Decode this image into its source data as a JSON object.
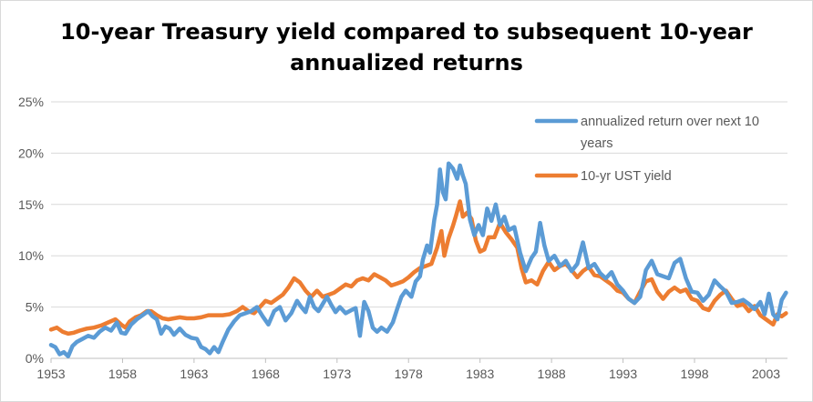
{
  "chart_data": {
    "type": "line",
    "title_lines": [
      "10-year Treasury yield compared to subsequent 10-year",
      "annualized returns"
    ],
    "xlabel": "",
    "ylabel": "",
    "xlim": [
      1953,
      2004.5
    ],
    "ylim": [
      0,
      25
    ],
    "x_ticks": [
      1953,
      1958,
      1963,
      1968,
      1973,
      1978,
      1983,
      1988,
      1993,
      1998,
      2003
    ],
    "y_ticks": [
      {
        "value": 0,
        "label": "0%"
      },
      {
        "value": 5,
        "label": "5%"
      },
      {
        "value": 10,
        "label": "10%"
      },
      {
        "value": 15,
        "label": "15%"
      },
      {
        "value": 20,
        "label": "20%"
      },
      {
        "value": 25,
        "label": "25%"
      }
    ],
    "grid": true,
    "legend_position": "top-right",
    "series": [
      {
        "name": "annualized return over next 10 years",
        "legend_lines": [
          "annualized return over next 10",
          "years"
        ],
        "color": "#5b9bd5",
        "points": [
          [
            1953.0,
            1.3
          ],
          [
            1953.3,
            1.1
          ],
          [
            1953.6,
            0.4
          ],
          [
            1953.9,
            0.6
          ],
          [
            1954.2,
            0.2
          ],
          [
            1954.5,
            1.2
          ],
          [
            1954.8,
            1.6
          ],
          [
            1955.2,
            1.9
          ],
          [
            1955.6,
            2.2
          ],
          [
            1956.0,
            2.0
          ],
          [
            1956.4,
            2.6
          ],
          [
            1956.8,
            3.0
          ],
          [
            1957.2,
            2.7
          ],
          [
            1957.6,
            3.5
          ],
          [
            1957.9,
            2.5
          ],
          [
            1958.2,
            2.4
          ],
          [
            1958.6,
            3.3
          ],
          [
            1959.0,
            3.8
          ],
          [
            1959.4,
            4.2
          ],
          [
            1959.8,
            4.6
          ],
          [
            1960.1,
            4.1
          ],
          [
            1960.4,
            3.8
          ],
          [
            1960.7,
            2.4
          ],
          [
            1961.0,
            3.1
          ],
          [
            1961.3,
            2.9
          ],
          [
            1961.6,
            2.3
          ],
          [
            1962.0,
            2.9
          ],
          [
            1962.4,
            2.3
          ],
          [
            1962.8,
            2.0
          ],
          [
            1963.2,
            1.9
          ],
          [
            1963.5,
            1.1
          ],
          [
            1963.8,
            0.9
          ],
          [
            1964.1,
            0.5
          ],
          [
            1964.4,
            1.1
          ],
          [
            1964.7,
            0.6
          ],
          [
            1965.0,
            1.6
          ],
          [
            1965.4,
            2.8
          ],
          [
            1965.8,
            3.6
          ],
          [
            1966.2,
            4.2
          ],
          [
            1966.6,
            4.4
          ],
          [
            1967.0,
            4.6
          ],
          [
            1967.4,
            5.0
          ],
          [
            1967.8,
            4.1
          ],
          [
            1968.2,
            3.3
          ],
          [
            1968.6,
            4.6
          ],
          [
            1969.0,
            5.0
          ],
          [
            1969.4,
            3.7
          ],
          [
            1969.8,
            4.4
          ],
          [
            1970.2,
            5.6
          ],
          [
            1970.5,
            5.0
          ],
          [
            1970.8,
            4.5
          ],
          [
            1971.1,
            6.0
          ],
          [
            1971.4,
            5.0
          ],
          [
            1971.7,
            4.6
          ],
          [
            1972.0,
            5.3
          ],
          [
            1972.3,
            6.0
          ],
          [
            1972.6,
            5.2
          ],
          [
            1972.9,
            4.5
          ],
          [
            1973.2,
            5.0
          ],
          [
            1973.6,
            4.4
          ],
          [
            1974.0,
            4.7
          ],
          [
            1974.3,
            4.9
          ],
          [
            1974.6,
            2.2
          ],
          [
            1974.9,
            5.5
          ],
          [
            1975.2,
            4.6
          ],
          [
            1975.5,
            3.0
          ],
          [
            1975.8,
            2.6
          ],
          [
            1976.1,
            3.0
          ],
          [
            1976.5,
            2.6
          ],
          [
            1976.9,
            3.5
          ],
          [
            1977.2,
            4.8
          ],
          [
            1977.5,
            6.0
          ],
          [
            1977.8,
            6.6
          ],
          [
            1978.2,
            6.0
          ],
          [
            1978.5,
            7.5
          ],
          [
            1978.8,
            8.0
          ],
          [
            1979.0,
            9.6
          ],
          [
            1979.3,
            11.0
          ],
          [
            1979.5,
            10.3
          ],
          [
            1979.8,
            13.5
          ],
          [
            1980.0,
            15.0
          ],
          [
            1980.2,
            18.4
          ],
          [
            1980.4,
            16.2
          ],
          [
            1980.6,
            15.5
          ],
          [
            1980.8,
            19.0
          ],
          [
            1981.1,
            18.5
          ],
          [
            1981.4,
            17.5
          ],
          [
            1981.6,
            18.8
          ],
          [
            1981.8,
            17.8
          ],
          [
            1982.0,
            17.0
          ],
          [
            1982.3,
            13.5
          ],
          [
            1982.6,
            12.0
          ],
          [
            1982.9,
            13.0
          ],
          [
            1983.2,
            12.0
          ],
          [
            1983.5,
            14.6
          ],
          [
            1983.8,
            13.4
          ],
          [
            1984.1,
            15.0
          ],
          [
            1984.4,
            13.0
          ],
          [
            1984.7,
            13.8
          ],
          [
            1985.0,
            12.5
          ],
          [
            1985.4,
            12.8
          ],
          [
            1985.8,
            10.3
          ],
          [
            1986.2,
            8.5
          ],
          [
            1986.6,
            9.8
          ],
          [
            1986.9,
            10.4
          ],
          [
            1987.2,
            13.2
          ],
          [
            1987.5,
            11.0
          ],
          [
            1987.8,
            9.5
          ],
          [
            1988.2,
            10.0
          ],
          [
            1988.6,
            9.0
          ],
          [
            1989.0,
            9.5
          ],
          [
            1989.4,
            8.5
          ],
          [
            1989.8,
            9.2
          ],
          [
            1990.2,
            11.3
          ],
          [
            1990.6,
            8.8
          ],
          [
            1991.0,
            9.2
          ],
          [
            1991.4,
            8.3
          ],
          [
            1991.8,
            7.8
          ],
          [
            1992.2,
            8.4
          ],
          [
            1992.6,
            7.2
          ],
          [
            1993.0,
            6.6
          ],
          [
            1993.4,
            5.8
          ],
          [
            1993.8,
            5.4
          ],
          [
            1994.2,
            6.0
          ],
          [
            1994.6,
            8.6
          ],
          [
            1995.0,
            9.5
          ],
          [
            1995.4,
            8.2
          ],
          [
            1995.8,
            8.0
          ],
          [
            1996.2,
            7.8
          ],
          [
            1996.6,
            9.3
          ],
          [
            1997.0,
            9.7
          ],
          [
            1997.4,
            7.8
          ],
          [
            1997.8,
            6.5
          ],
          [
            1998.2,
            6.4
          ],
          [
            1998.6,
            5.6
          ],
          [
            1999.0,
            6.2
          ],
          [
            1999.4,
            7.6
          ],
          [
            1999.8,
            7.0
          ],
          [
            2000.2,
            6.5
          ],
          [
            2000.6,
            5.4
          ],
          [
            2001.0,
            5.5
          ],
          [
            2001.4,
            5.7
          ],
          [
            2001.8,
            5.3
          ],
          [
            2002.2,
            4.8
          ],
          [
            2002.6,
            5.5
          ],
          [
            2002.9,
            4.3
          ],
          [
            2003.2,
            6.3
          ],
          [
            2003.5,
            4.3
          ],
          [
            2003.8,
            3.8
          ],
          [
            2004.1,
            5.7
          ],
          [
            2004.4,
            6.4
          ]
        ]
      },
      {
        "name": "10-yr UST yield",
        "legend_lines": [
          "10-yr UST yield"
        ],
        "color": "#ed7d31",
        "points": [
          [
            1953.0,
            2.8
          ],
          [
            1953.4,
            3.0
          ],
          [
            1953.8,
            2.6
          ],
          [
            1954.2,
            2.4
          ],
          [
            1954.6,
            2.5
          ],
          [
            1955.0,
            2.7
          ],
          [
            1955.5,
            2.9
          ],
          [
            1956.0,
            3.0
          ],
          [
            1956.5,
            3.2
          ],
          [
            1957.0,
            3.5
          ],
          [
            1957.5,
            3.8
          ],
          [
            1957.9,
            3.3
          ],
          [
            1958.2,
            3.0
          ],
          [
            1958.5,
            3.6
          ],
          [
            1958.9,
            4.0
          ],
          [
            1959.3,
            4.2
          ],
          [
            1959.7,
            4.6
          ],
          [
            1960.0,
            4.6
          ],
          [
            1960.4,
            4.2
          ],
          [
            1960.8,
            3.9
          ],
          [
            1961.2,
            3.8
          ],
          [
            1961.6,
            3.9
          ],
          [
            1962.0,
            4.0
          ],
          [
            1962.5,
            3.9
          ],
          [
            1963.0,
            3.9
          ],
          [
            1963.5,
            4.0
          ],
          [
            1964.0,
            4.2
          ],
          [
            1964.5,
            4.2
          ],
          [
            1965.0,
            4.2
          ],
          [
            1965.5,
            4.3
          ],
          [
            1966.0,
            4.6
          ],
          [
            1966.4,
            5.0
          ],
          [
            1966.8,
            4.6
          ],
          [
            1967.2,
            4.4
          ],
          [
            1967.6,
            5.0
          ],
          [
            1968.0,
            5.6
          ],
          [
            1968.4,
            5.4
          ],
          [
            1968.8,
            5.8
          ],
          [
            1969.2,
            6.2
          ],
          [
            1969.6,
            6.9
          ],
          [
            1970.0,
            7.8
          ],
          [
            1970.4,
            7.4
          ],
          [
            1970.8,
            6.6
          ],
          [
            1971.2,
            6.0
          ],
          [
            1971.6,
            6.6
          ],
          [
            1972.0,
            6.0
          ],
          [
            1972.4,
            6.2
          ],
          [
            1972.8,
            6.4
          ],
          [
            1973.2,
            6.8
          ],
          [
            1973.6,
            7.2
          ],
          [
            1974.0,
            7.0
          ],
          [
            1974.4,
            7.6
          ],
          [
            1974.8,
            7.8
          ],
          [
            1975.2,
            7.6
          ],
          [
            1975.6,
            8.2
          ],
          [
            1976.0,
            7.9
          ],
          [
            1976.4,
            7.6
          ],
          [
            1976.8,
            7.1
          ],
          [
            1977.2,
            7.3
          ],
          [
            1977.6,
            7.5
          ],
          [
            1978.0,
            7.9
          ],
          [
            1978.4,
            8.4
          ],
          [
            1978.8,
            8.8
          ],
          [
            1979.2,
            9.0
          ],
          [
            1979.6,
            9.2
          ],
          [
            1980.0,
            10.8
          ],
          [
            1980.3,
            12.4
          ],
          [
            1980.5,
            10.0
          ],
          [
            1980.8,
            11.7
          ],
          [
            1981.1,
            12.9
          ],
          [
            1981.3,
            13.8
          ],
          [
            1981.6,
            15.3
          ],
          [
            1981.8,
            13.8
          ],
          [
            1982.1,
            14.2
          ],
          [
            1982.4,
            13.6
          ],
          [
            1982.7,
            11.5
          ],
          [
            1983.0,
            10.4
          ],
          [
            1983.3,
            10.6
          ],
          [
            1983.6,
            11.8
          ],
          [
            1984.0,
            11.8
          ],
          [
            1984.4,
            13.2
          ],
          [
            1984.8,
            12.3
          ],
          [
            1985.2,
            11.6
          ],
          [
            1985.6,
            10.8
          ],
          [
            1985.9,
            8.8
          ],
          [
            1986.2,
            7.4
          ],
          [
            1986.6,
            7.6
          ],
          [
            1987.0,
            7.2
          ],
          [
            1987.4,
            8.5
          ],
          [
            1987.8,
            9.4
          ],
          [
            1988.2,
            8.6
          ],
          [
            1988.6,
            9.0
          ],
          [
            1989.0,
            9.2
          ],
          [
            1989.4,
            8.6
          ],
          [
            1989.8,
            7.9
          ],
          [
            1990.2,
            8.5
          ],
          [
            1990.6,
            8.9
          ],
          [
            1991.0,
            8.1
          ],
          [
            1991.4,
            8.0
          ],
          [
            1991.8,
            7.6
          ],
          [
            1992.2,
            7.2
          ],
          [
            1992.6,
            6.6
          ],
          [
            1993.0,
            6.4
          ],
          [
            1993.4,
            5.8
          ],
          [
            1993.8,
            5.4
          ],
          [
            1994.2,
            6.5
          ],
          [
            1994.6,
            7.5
          ],
          [
            1995.0,
            7.7
          ],
          [
            1995.4,
            6.5
          ],
          [
            1995.8,
            5.8
          ],
          [
            1996.2,
            6.5
          ],
          [
            1996.6,
            6.9
          ],
          [
            1997.0,
            6.5
          ],
          [
            1997.4,
            6.7
          ],
          [
            1997.8,
            5.8
          ],
          [
            1998.2,
            5.6
          ],
          [
            1998.6,
            4.9
          ],
          [
            1999.0,
            4.7
          ],
          [
            1999.4,
            5.6
          ],
          [
            1999.8,
            6.2
          ],
          [
            2000.2,
            6.6
          ],
          [
            2000.6,
            5.8
          ],
          [
            2001.0,
            5.1
          ],
          [
            2001.4,
            5.3
          ],
          [
            2001.8,
            4.6
          ],
          [
            2002.2,
            5.1
          ],
          [
            2002.6,
            4.2
          ],
          [
            2002.9,
            3.9
          ],
          [
            2003.2,
            3.6
          ],
          [
            2003.5,
            3.3
          ],
          [
            2003.8,
            4.3
          ],
          [
            2004.1,
            4.1
          ],
          [
            2004.4,
            4.4
          ]
        ]
      }
    ]
  }
}
